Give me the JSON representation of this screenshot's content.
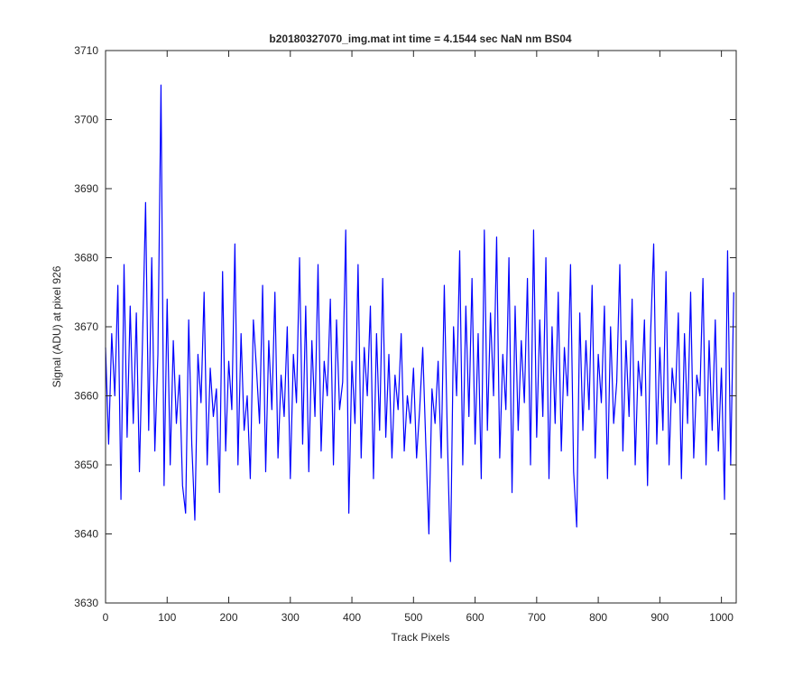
{
  "chart_data": {
    "type": "line",
    "title": "b20180327070_img.mat int time = 4.1544 sec  NaN nm BS04",
    "xlabel": "Track Pixels",
    "ylabel": "Signal (ADU) at pixel 926",
    "xlim": [
      0,
      1024
    ],
    "ylim": [
      3630,
      3710
    ],
    "xticks": [
      0,
      100,
      200,
      300,
      400,
      500,
      600,
      700,
      800,
      900,
      1000
    ],
    "yticks": [
      3630,
      3640,
      3650,
      3660,
      3670,
      3680,
      3690,
      3700,
      3710
    ],
    "x": [
      0,
      5,
      10,
      15,
      20,
      25,
      30,
      35,
      40,
      45,
      50,
      55,
      60,
      65,
      70,
      75,
      80,
      85,
      90,
      95,
      100,
      105,
      110,
      115,
      120,
      125,
      130,
      135,
      140,
      145,
      150,
      155,
      160,
      165,
      170,
      175,
      180,
      185,
      190,
      195,
      200,
      205,
      210,
      215,
      220,
      225,
      230,
      235,
      240,
      245,
      250,
      255,
      260,
      265,
      270,
      275,
      280,
      285,
      290,
      295,
      300,
      305,
      310,
      315,
      320,
      325,
      330,
      335,
      340,
      345,
      350,
      355,
      360,
      365,
      370,
      375,
      380,
      385,
      390,
      395,
      400,
      405,
      410,
      415,
      420,
      425,
      430,
      435,
      440,
      445,
      450,
      455,
      460,
      465,
      470,
      475,
      480,
      485,
      490,
      495,
      500,
      505,
      510,
      515,
      520,
      525,
      530,
      535,
      540,
      545,
      550,
      555,
      560,
      565,
      570,
      575,
      580,
      585,
      590,
      595,
      600,
      605,
      610,
      615,
      620,
      625,
      630,
      635,
      640,
      645,
      650,
      655,
      660,
      665,
      670,
      675,
      680,
      685,
      690,
      695,
      700,
      705,
      710,
      715,
      720,
      725,
      730,
      735,
      740,
      745,
      750,
      755,
      760,
      765,
      770,
      775,
      780,
      785,
      790,
      795,
      800,
      805,
      810,
      815,
      820,
      825,
      830,
      835,
      840,
      845,
      850,
      855,
      860,
      865,
      870,
      875,
      880,
      885,
      890,
      895,
      900,
      905,
      910,
      915,
      920,
      925,
      930,
      935,
      940,
      945,
      950,
      955,
      960,
      965,
      970,
      975,
      980,
      985,
      990,
      995,
      1000,
      1005,
      1010,
      1015,
      1020
    ],
    "series": [
      {
        "color": "#0000ff",
        "values": [
          3667,
          3653,
          3669,
          3660,
          3676,
          3645,
          3679,
          3654,
          3673,
          3656,
          3672,
          3649,
          3668,
          3688,
          3655,
          3680,
          3652,
          3666,
          3705,
          3647,
          3674,
          3650,
          3668,
          3656,
          3663,
          3647,
          3643,
          3671,
          3653,
          3642,
          3666,
          3659,
          3675,
          3650,
          3664,
          3657,
          3661,
          3646,
          3678,
          3652,
          3665,
          3658,
          3682,
          3650,
          3669,
          3655,
          3660,
          3648,
          3671,
          3664,
          3656,
          3676,
          3649,
          3668,
          3658,
          3675,
          3651,
          3663,
          3657,
          3670,
          3648,
          3666,
          3659,
          3680,
          3653,
          3673,
          3649,
          3668,
          3657,
          3679,
          3652,
          3665,
          3660,
          3674,
          3650,
          3671,
          3658,
          3662,
          3684,
          3643,
          3665,
          3656,
          3679,
          3651,
          3667,
          3660,
          3673,
          3648,
          3669,
          3655,
          3677,
          3654,
          3666,
          3651,
          3663,
          3658,
          3669,
          3652,
          3660,
          3656,
          3664,
          3651,
          3658,
          3667,
          3653,
          3640,
          3661,
          3656,
          3665,
          3651,
          3676,
          3654,
          3636,
          3670,
          3660,
          3681,
          3650,
          3673,
          3657,
          3677,
          3653,
          3669,
          3648,
          3684,
          3655,
          3672,
          3660,
          3683,
          3651,
          3666,
          3658,
          3680,
          3646,
          3673,
          3655,
          3668,
          3659,
          3677,
          3650,
          3684,
          3654,
          3671,
          3657,
          3680,
          3648,
          3670,
          3656,
          3675,
          3652,
          3667,
          3660,
          3679,
          3649,
          3641,
          3672,
          3655,
          3668,
          3658,
          3676,
          3651,
          3666,
          3659,
          3673,
          3648,
          3670,
          3656,
          3662,
          3679,
          3652,
          3668,
          3657,
          3674,
          3650,
          3665,
          3660,
          3671,
          3647,
          3669,
          3682,
          3653,
          3667,
          3655,
          3678,
          3650,
          3664,
          3659,
          3672,
          3648,
          3669,
          3656,
          3675,
          3651,
          3663,
          3660,
          3677,
          3650,
          3668,
          3655,
          3671,
          3652,
          3664,
          3645,
          3681,
          3650,
          3675
        ]
      }
    ]
  }
}
